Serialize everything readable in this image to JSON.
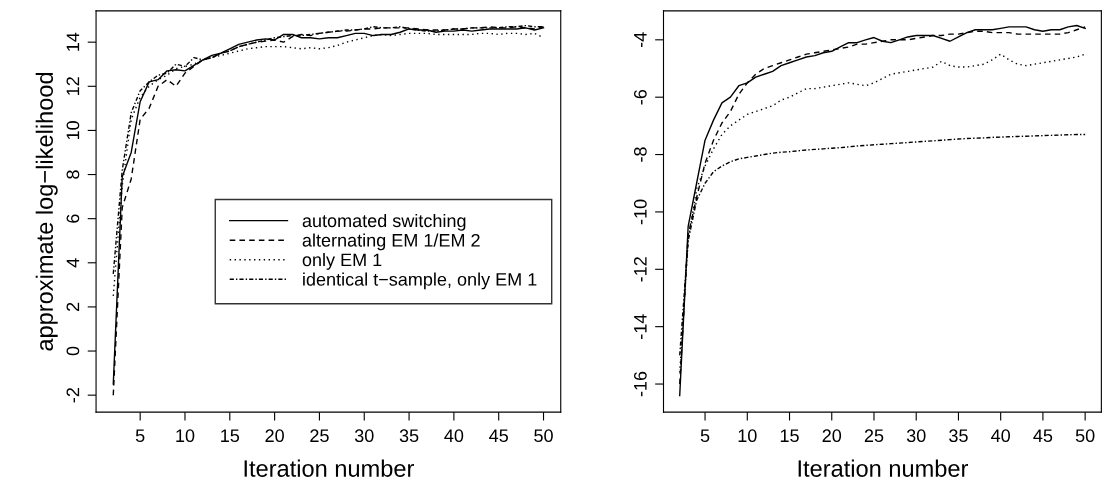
{
  "chart_data": [
    {
      "type": "line",
      "ylabel": "approximate log−likelihood",
      "xlabel": "Iteration number",
      "x": [
        2,
        3,
        4,
        5,
        6,
        7,
        8,
        9,
        10,
        11,
        12,
        13,
        14,
        15,
        16,
        17,
        18,
        19,
        20,
        21,
        22,
        23,
        24,
        25,
        26,
        27,
        28,
        29,
        30,
        31,
        32,
        33,
        34,
        35,
        36,
        37,
        38,
        39,
        40,
        41,
        42,
        43,
        44,
        45,
        46,
        47,
        48,
        49,
        50
      ],
      "xlim": [
        0.08,
        51.92
      ],
      "xticks": [
        5,
        10,
        15,
        20,
        25,
        30,
        35,
        40,
        45,
        50
      ],
      "ylim": [
        -2.77,
        15.42
      ],
      "yticks": [
        -2,
        0,
        2,
        4,
        6,
        8,
        10,
        12,
        14
      ],
      "legend": "right",
      "grid": false,
      "series": [
        {
          "name": "automated switching",
          "color": "#000000",
          "line_style": "solid",
          "values": [
            -1.5,
            7.9,
            9.0,
            11.3,
            12.2,
            12.3,
            12.7,
            12.75,
            12.7,
            12.95,
            13.2,
            13.4,
            13.5,
            13.7,
            13.9,
            14.0,
            14.1,
            14.15,
            14.1,
            14.35,
            14.35,
            14.2,
            14.2,
            14.15,
            14.2,
            14.2,
            14.3,
            14.4,
            14.4,
            14.3,
            14.35,
            14.35,
            14.45,
            14.6,
            14.55,
            14.55,
            14.45,
            14.5,
            14.5,
            14.55,
            14.5,
            14.55,
            14.6,
            14.6,
            14.6,
            14.6,
            14.65,
            14.55,
            14.65
          ]
        },
        {
          "name": "alternating EM 1/EM 2",
          "color": "#000000",
          "line_style": "dashed",
          "values": [
            -2.0,
            6.5,
            7.8,
            10.5,
            11.0,
            12.0,
            12.3,
            12.0,
            12.6,
            12.9,
            13.2,
            13.3,
            13.5,
            13.6,
            13.8,
            13.9,
            14.0,
            14.05,
            14.1,
            14.0,
            14.25,
            14.35,
            14.3,
            14.4,
            14.45,
            14.5,
            14.5,
            14.55,
            14.6,
            14.6,
            14.65,
            14.65,
            14.65,
            14.65,
            14.6,
            14.55,
            14.55,
            14.55,
            14.6,
            14.6,
            14.65,
            14.65,
            14.7,
            14.65,
            14.65,
            14.7,
            14.65,
            14.6,
            14.7
          ]
        },
        {
          "name": "only EM 1",
          "color": "#000000",
          "line_style": "dotted",
          "values": [
            2.5,
            7.5,
            10.5,
            11.5,
            12.0,
            12.3,
            12.5,
            12.8,
            12.9,
            13.0,
            13.2,
            13.3,
            13.4,
            13.5,
            13.6,
            13.7,
            13.75,
            13.8,
            13.8,
            13.8,
            13.75,
            13.7,
            13.75,
            13.7,
            13.75,
            13.85,
            14.0,
            14.1,
            14.2,
            14.3,
            14.35,
            14.3,
            14.35,
            14.4,
            14.4,
            14.4,
            14.35,
            14.35,
            14.35,
            14.35,
            14.35,
            14.4,
            14.4,
            14.35,
            14.4,
            14.4,
            14.35,
            14.4,
            14.2
          ]
        },
        {
          "name": "identical t−sample, only EM 1",
          "color": "#000000",
          "line_style": "dashdot",
          "values": [
            3.5,
            8.2,
            10.8,
            11.8,
            12.2,
            12.5,
            12.6,
            13.0,
            12.9,
            13.3,
            13.2,
            13.3,
            13.5,
            13.6,
            13.8,
            13.9,
            14.0,
            14.1,
            14.2,
            14.25,
            14.3,
            14.3,
            14.35,
            14.4,
            14.45,
            14.5,
            14.55,
            14.55,
            14.6,
            14.7,
            14.65,
            14.65,
            14.7,
            14.6,
            14.55,
            14.5,
            14.5,
            14.55,
            14.6,
            14.6,
            14.65,
            14.65,
            14.65,
            14.65,
            14.7,
            14.7,
            14.75,
            14.7,
            14.7
          ]
        }
      ]
    },
    {
      "type": "line",
      "xlabel": "Iteration number",
      "x": [
        2,
        3,
        4,
        5,
        6,
        7,
        8,
        9,
        10,
        11,
        12,
        13,
        14,
        15,
        16,
        17,
        18,
        19,
        20,
        21,
        22,
        23,
        24,
        25,
        26,
        27,
        28,
        29,
        30,
        31,
        32,
        33,
        34,
        35,
        36,
        37,
        38,
        39,
        40,
        41,
        42,
        43,
        44,
        45,
        46,
        47,
        48,
        49,
        50
      ],
      "xlim": [
        0.08,
        51.92
      ],
      "xticks": [
        5,
        10,
        15,
        20,
        25,
        30,
        35,
        40,
        45,
        50
      ],
      "ylim": [
        -16.98,
        -2.99
      ],
      "yticks": [
        -16,
        -14,
        -12,
        -10,
        -8,
        -6,
        -4
      ],
      "grid": false,
      "series": [
        {
          "color": "#000000",
          "line_style": "solid",
          "values": [
            -16.4,
            -10.5,
            -9.0,
            -7.5,
            -6.8,
            -6.2,
            -6.0,
            -5.6,
            -5.5,
            -5.3,
            -5.2,
            -5.1,
            -4.9,
            -4.8,
            -4.7,
            -4.6,
            -4.55,
            -4.45,
            -4.4,
            -4.25,
            -4.1,
            -4.1,
            -4.0,
            -3.92,
            -4.05,
            -4.1,
            -4.0,
            -3.9,
            -3.85,
            -3.85,
            -3.85,
            -3.95,
            -4.05,
            -3.9,
            -3.75,
            -3.65,
            -3.65,
            -3.65,
            -3.6,
            -3.55,
            -3.55,
            -3.55,
            -3.65,
            -3.7,
            -3.65,
            -3.65,
            -3.55,
            -3.5,
            -3.6
          ]
        },
        {
          "color": "#000000",
          "line_style": "dashed",
          "values": [
            -16.0,
            -10.8,
            -9.5,
            -8.3,
            -7.5,
            -6.9,
            -6.5,
            -5.9,
            -5.5,
            -5.2,
            -5.0,
            -4.9,
            -4.8,
            -4.7,
            -4.6,
            -4.5,
            -4.45,
            -4.4,
            -4.35,
            -4.3,
            -4.25,
            -4.15,
            -4.15,
            -4.1,
            -4.05,
            -4.0,
            -4.0,
            -4.0,
            -3.95,
            -3.9,
            -3.85,
            -3.85,
            -3.8,
            -3.8,
            -3.75,
            -3.7,
            -3.7,
            -3.75,
            -3.75,
            -3.75,
            -3.8,
            -3.8,
            -3.8,
            -3.8,
            -3.8,
            -3.8,
            -3.75,
            -3.65,
            -3.55
          ]
        },
        {
          "color": "#000000",
          "line_style": "dotted",
          "values": [
            -15.6,
            -11.0,
            -9.2,
            -8.4,
            -7.8,
            -7.3,
            -7.0,
            -6.8,
            -6.6,
            -6.5,
            -6.4,
            -6.3,
            -6.1,
            -6.0,
            -5.85,
            -5.7,
            -5.7,
            -5.65,
            -5.6,
            -5.55,
            -5.5,
            -5.55,
            -5.6,
            -5.5,
            -5.35,
            -5.2,
            -5.15,
            -5.1,
            -5.05,
            -5.0,
            -4.95,
            -4.75,
            -4.9,
            -4.95,
            -4.95,
            -4.9,
            -4.85,
            -4.7,
            -4.5,
            -4.7,
            -4.85,
            -4.9,
            -4.85,
            -4.8,
            -4.75,
            -4.7,
            -4.65,
            -4.6,
            -4.5
          ]
        },
        {
          "color": "#000000",
          "line_style": "dashdot",
          "values": [
            -15.0,
            -11.0,
            -9.6,
            -9.0,
            -8.6,
            -8.4,
            -8.25,
            -8.15,
            -8.1,
            -8.05,
            -8.0,
            -7.95,
            -7.92,
            -7.9,
            -7.87,
            -7.84,
            -7.82,
            -7.8,
            -7.78,
            -7.76,
            -7.73,
            -7.7,
            -7.68,
            -7.66,
            -7.64,
            -7.62,
            -7.6,
            -7.58,
            -7.56,
            -7.54,
            -7.52,
            -7.5,
            -7.48,
            -7.46,
            -7.44,
            -7.43,
            -7.42,
            -7.4,
            -7.39,
            -7.38,
            -7.37,
            -7.36,
            -7.35,
            -7.34,
            -7.33,
            -7.32,
            -7.31,
            -7.3,
            -7.3
          ]
        }
      ]
    }
  ]
}
